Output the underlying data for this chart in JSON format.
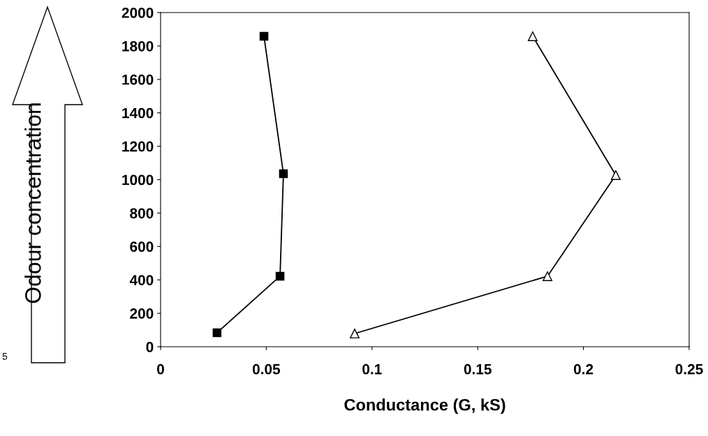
{
  "chart_data": {
    "type": "line",
    "xlabel": "Conductance (G, kS)",
    "ylabel": "Odour concentration",
    "series": [
      {
        "color": "#000000",
        "marker": "square",
        "x": [
          0.0267,
          0.0565,
          0.0581,
          0.0489
        ],
        "values": [
          84,
          422,
          1035,
          1858
        ]
      },
      {
        "color": "#000000",
        "marker": "triangle",
        "x": [
          0.0918,
          0.183,
          0.2153,
          0.176
        ],
        "values": [
          79,
          422,
          1027,
          1858
        ]
      }
    ],
    "xlim": [
      0,
      0.25
    ],
    "xticks": [
      0,
      0.05,
      0.1,
      0.15,
      0.2,
      0.25
    ],
    "ylim": [
      0,
      2000
    ],
    "yticks": [
      0,
      200,
      400,
      600,
      800,
      1000,
      1200,
      1400,
      1600,
      1800,
      2000
    ],
    "grid": false,
    "legend": false,
    "annotations": [
      "5"
    ]
  }
}
